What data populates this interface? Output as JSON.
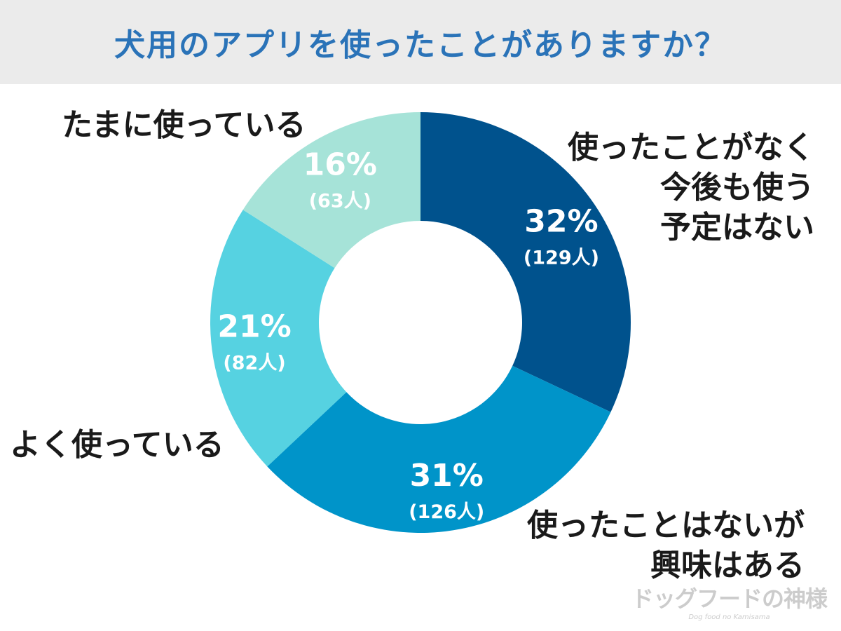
{
  "title": "犬用のアプリを使ったことがありますか？",
  "chart_data": {
    "type": "pie",
    "variant": "donut",
    "title": "犬用のアプリを使ったことがありますか？",
    "start_angle_deg": 0,
    "direction": "clockwise",
    "slices": [
      {
        "label_lines": [
          "使ったことがなく",
          "今後も使う",
          "予定はない"
        ],
        "percent": 32,
        "percent_text": "32%",
        "count_text": "(129人)",
        "color": "#00528d"
      },
      {
        "label_lines": [
          "使ったことはないが",
          "興味はある"
        ],
        "percent": 31,
        "percent_text": "31%",
        "count_text": "(126人)",
        "color": "#0094c9"
      },
      {
        "label_lines": [
          "よく使っている"
        ],
        "percent": 21,
        "percent_text": "21%",
        "count_text": "(82人)",
        "color": "#56d2e1"
      },
      {
        "label_lines": [
          "たまに使っている"
        ],
        "percent": 16,
        "percent_text": "16%",
        "count_text": "(63人)",
        "color": "#a6e3d8"
      }
    ]
  },
  "watermark": {
    "main": "ドッグフードの神様",
    "sub": "Dog food no Kamisama"
  }
}
